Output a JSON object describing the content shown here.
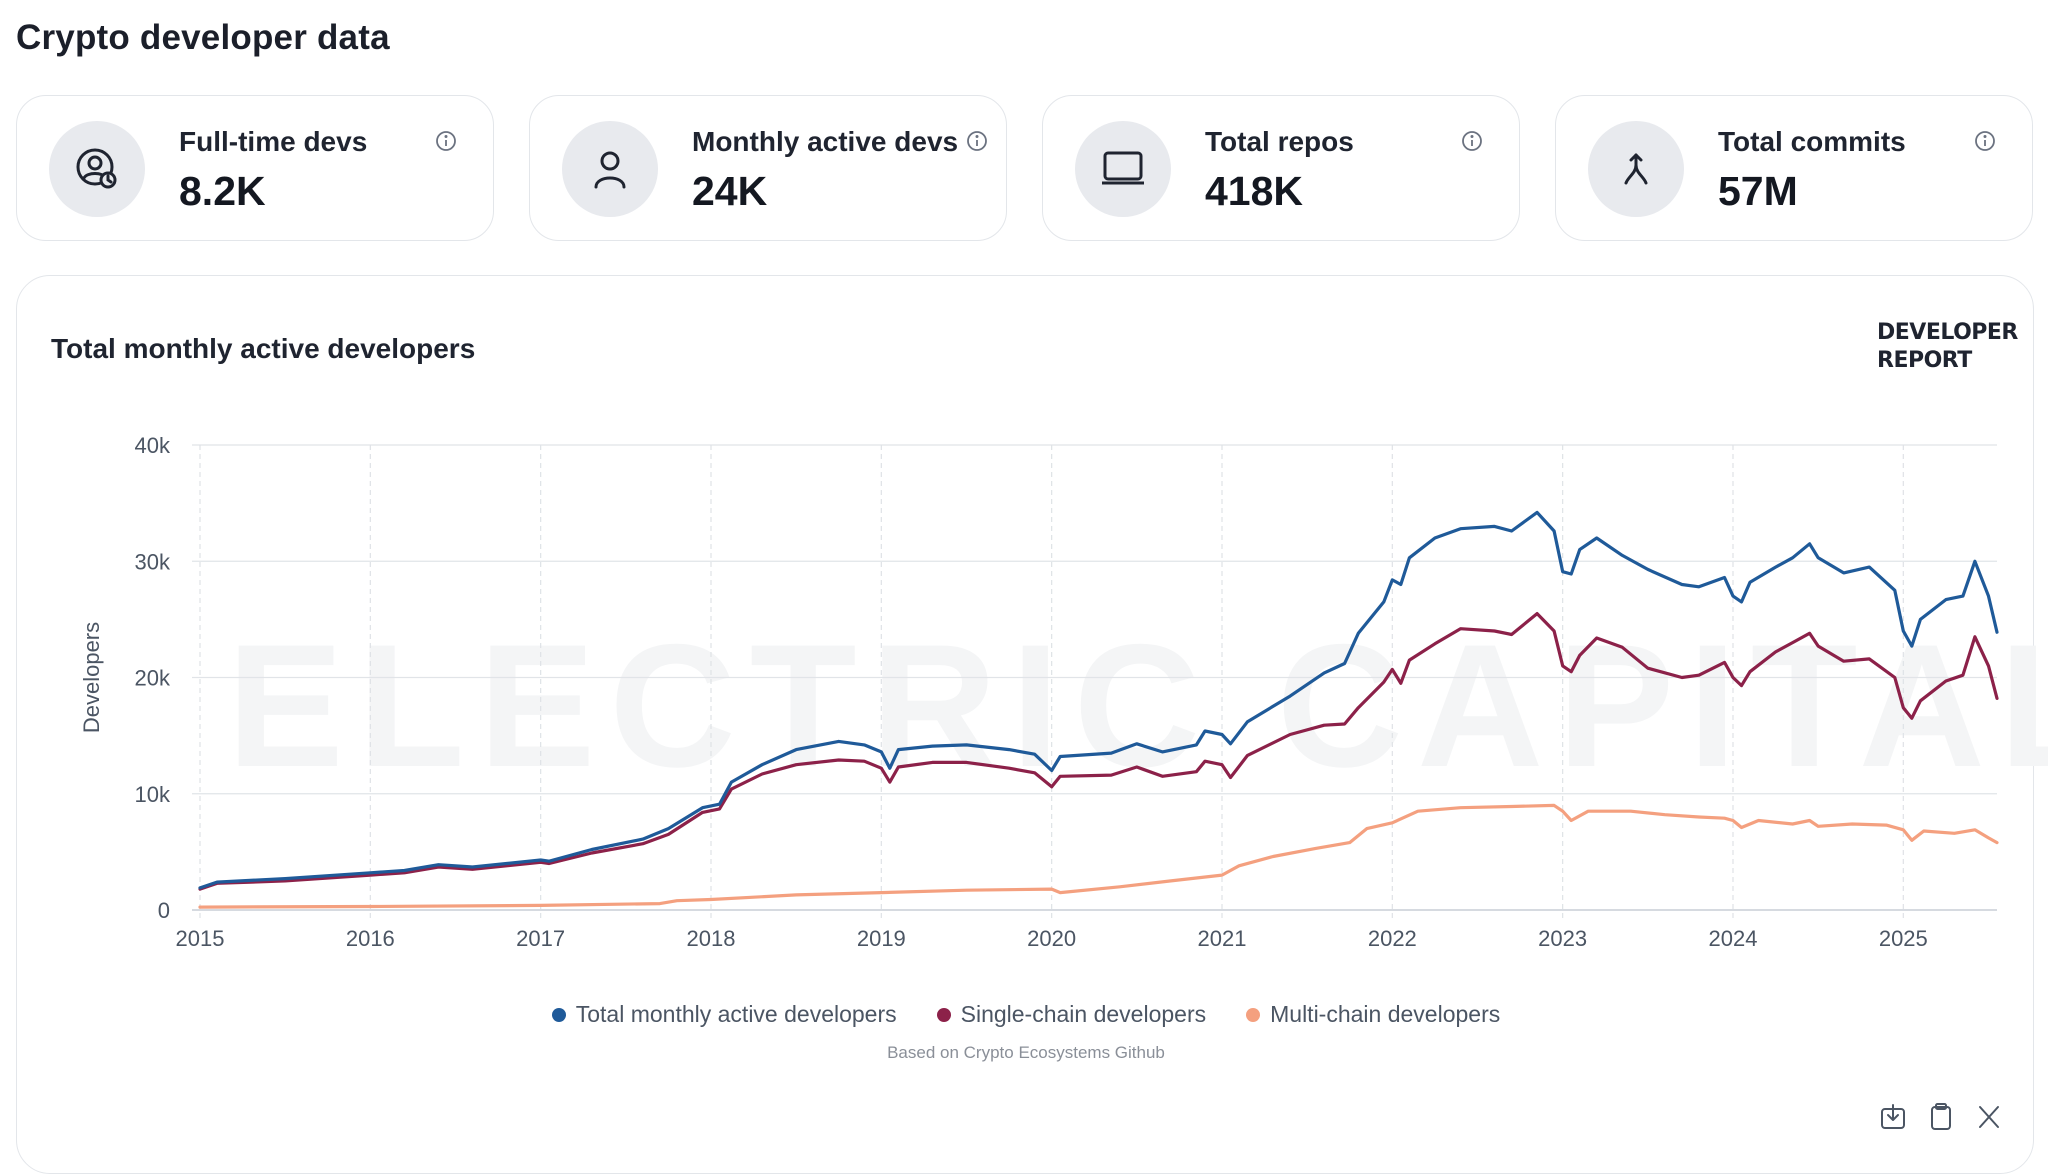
{
  "page": {
    "title": "Crypto developer data"
  },
  "stats": [
    {
      "label": "Full-time devs",
      "value": "8.2K",
      "icon": "user-clock-icon"
    },
    {
      "label": "Monthly active devs",
      "value": "24K",
      "icon": "user-icon"
    },
    {
      "label": "Total repos",
      "value": "418K",
      "icon": "laptop-icon"
    },
    {
      "label": "Total commits",
      "value": "57M",
      "icon": "merge-icon"
    }
  ],
  "chart": {
    "title": "Total monthly active developers",
    "badge": "DEVELOPER REPORT",
    "watermark": "ELECTRIC CAPITAL",
    "source_note": "Based on Crypto Ecosystems Github",
    "actions": [
      "download-icon",
      "clipboard-icon",
      "x-share-icon"
    ]
  },
  "chart_data": {
    "type": "line",
    "title": "Total monthly active developers",
    "xlabel": "",
    "ylabel": "Developers",
    "xlim": [
      2015,
      2025.55
    ],
    "ylim": [
      0,
      40000
    ],
    "x_ticks": [
      "2015",
      "2016",
      "2017",
      "2018",
      "2019",
      "2020",
      "2021",
      "2022",
      "2023",
      "2024",
      "2025"
    ],
    "y_ticks": [
      "0",
      "10k",
      "20k",
      "30k",
      "40k"
    ],
    "grid": true,
    "legend_position": "bottom",
    "series": [
      {
        "name": "Total monthly active developers",
        "color": "#1f5a99",
        "points": [
          [
            2015,
            1900
          ],
          [
            2015.1,
            2400
          ],
          [
            2015.5,
            2700
          ],
          [
            2016,
            3200
          ],
          [
            2016.2,
            3400
          ],
          [
            2016.4,
            3900
          ],
          [
            2016.6,
            3700
          ],
          [
            2016.8,
            4000
          ],
          [
            2017,
            4300
          ],
          [
            2017.05,
            4200
          ],
          [
            2017.3,
            5200
          ],
          [
            2017.6,
            6100
          ],
          [
            2017.75,
            7000
          ],
          [
            2017.95,
            8800
          ],
          [
            2018.05,
            9100
          ],
          [
            2018.12,
            11000
          ],
          [
            2018.3,
            12500
          ],
          [
            2018.5,
            13800
          ],
          [
            2018.75,
            14500
          ],
          [
            2018.9,
            14200
          ],
          [
            2019,
            13600
          ],
          [
            2019.05,
            12200
          ],
          [
            2019.1,
            13800
          ],
          [
            2019.3,
            14100
          ],
          [
            2019.5,
            14200
          ],
          [
            2019.75,
            13800
          ],
          [
            2019.9,
            13400
          ],
          [
            2020,
            12000
          ],
          [
            2020.05,
            13200
          ],
          [
            2020.35,
            13500
          ],
          [
            2020.5,
            14300
          ],
          [
            2020.65,
            13600
          ],
          [
            2020.85,
            14200
          ],
          [
            2020.9,
            15400
          ],
          [
            2021,
            15100
          ],
          [
            2021.05,
            14300
          ],
          [
            2021.15,
            16200
          ],
          [
            2021.4,
            18400
          ],
          [
            2021.6,
            20400
          ],
          [
            2021.72,
            21200
          ],
          [
            2021.8,
            23800
          ],
          [
            2021.95,
            26500
          ],
          [
            2022,
            28400
          ],
          [
            2022.05,
            28000
          ],
          [
            2022.1,
            30300
          ],
          [
            2022.25,
            32000
          ],
          [
            2022.4,
            32800
          ],
          [
            2022.6,
            33000
          ],
          [
            2022.7,
            32600
          ],
          [
            2022.85,
            34200
          ],
          [
            2022.95,
            32600
          ],
          [
            2023,
            29100
          ],
          [
            2023.05,
            28900
          ],
          [
            2023.1,
            31000
          ],
          [
            2023.2,
            32000
          ],
          [
            2023.35,
            30500
          ],
          [
            2023.5,
            29300
          ],
          [
            2023.7,
            28000
          ],
          [
            2023.8,
            27800
          ],
          [
            2023.95,
            28600
          ],
          [
            2024,
            27000
          ],
          [
            2024.05,
            26500
          ],
          [
            2024.1,
            28200
          ],
          [
            2024.25,
            29500
          ],
          [
            2024.35,
            30300
          ],
          [
            2024.45,
            31500
          ],
          [
            2024.5,
            30300
          ],
          [
            2024.65,
            29000
          ],
          [
            2024.8,
            29500
          ],
          [
            2024.95,
            27500
          ],
          [
            2025,
            24000
          ],
          [
            2025.05,
            22700
          ],
          [
            2025.1,
            25000
          ],
          [
            2025.25,
            26700
          ],
          [
            2025.35,
            27000
          ],
          [
            2025.42,
            30000
          ],
          [
            2025.5,
            27000
          ],
          [
            2025.55,
            23900
          ]
        ]
      },
      {
        "name": "Single-chain developers",
        "color": "#8c2149",
        "points": [
          [
            2015,
            1800
          ],
          [
            2015.1,
            2300
          ],
          [
            2015.5,
            2500
          ],
          [
            2016,
            3000
          ],
          [
            2016.2,
            3200
          ],
          [
            2016.4,
            3700
          ],
          [
            2016.6,
            3500
          ],
          [
            2016.8,
            3800
          ],
          [
            2017,
            4100
          ],
          [
            2017.05,
            4000
          ],
          [
            2017.3,
            4900
          ],
          [
            2017.6,
            5700
          ],
          [
            2017.75,
            6500
          ],
          [
            2017.95,
            8400
          ],
          [
            2018.05,
            8700
          ],
          [
            2018.12,
            10400
          ],
          [
            2018.3,
            11700
          ],
          [
            2018.5,
            12500
          ],
          [
            2018.75,
            12900
          ],
          [
            2018.9,
            12800
          ],
          [
            2019,
            12200
          ],
          [
            2019.05,
            11000
          ],
          [
            2019.1,
            12300
          ],
          [
            2019.3,
            12700
          ],
          [
            2019.5,
            12700
          ],
          [
            2019.75,
            12200
          ],
          [
            2019.9,
            11800
          ],
          [
            2020,
            10600
          ],
          [
            2020.05,
            11500
          ],
          [
            2020.35,
            11600
          ],
          [
            2020.5,
            12300
          ],
          [
            2020.65,
            11500
          ],
          [
            2020.85,
            11900
          ],
          [
            2020.9,
            12800
          ],
          [
            2021,
            12500
          ],
          [
            2021.05,
            11400
          ],
          [
            2021.15,
            13300
          ],
          [
            2021.4,
            15100
          ],
          [
            2021.6,
            15900
          ],
          [
            2021.72,
            16000
          ],
          [
            2021.8,
            17400
          ],
          [
            2021.95,
            19600
          ],
          [
            2022,
            20700
          ],
          [
            2022.05,
            19500
          ],
          [
            2022.1,
            21500
          ],
          [
            2022.25,
            22900
          ],
          [
            2022.4,
            24200
          ],
          [
            2022.6,
            24000
          ],
          [
            2022.7,
            23700
          ],
          [
            2022.85,
            25500
          ],
          [
            2022.95,
            24000
          ],
          [
            2023,
            21000
          ],
          [
            2023.05,
            20500
          ],
          [
            2023.1,
            21900
          ],
          [
            2023.2,
            23400
          ],
          [
            2023.35,
            22600
          ],
          [
            2023.5,
            20800
          ],
          [
            2023.7,
            20000
          ],
          [
            2023.8,
            20200
          ],
          [
            2023.95,
            21300
          ],
          [
            2024,
            20000
          ],
          [
            2024.05,
            19300
          ],
          [
            2024.1,
            20500
          ],
          [
            2024.25,
            22200
          ],
          [
            2024.35,
            23000
          ],
          [
            2024.45,
            23800
          ],
          [
            2024.5,
            22700
          ],
          [
            2024.65,
            21400
          ],
          [
            2024.8,
            21600
          ],
          [
            2024.95,
            20000
          ],
          [
            2025,
            17400
          ],
          [
            2025.05,
            16500
          ],
          [
            2025.1,
            18000
          ],
          [
            2025.25,
            19700
          ],
          [
            2025.35,
            20200
          ],
          [
            2025.42,
            23500
          ],
          [
            2025.5,
            21000
          ],
          [
            2025.55,
            18200
          ]
        ]
      },
      {
        "name": "Multi-chain developers",
        "color": "#f4a07f",
        "points": [
          [
            2015,
            250
          ],
          [
            2016,
            300
          ],
          [
            2017,
            400
          ],
          [
            2017.7,
            550
          ],
          [
            2017.8,
            800
          ],
          [
            2018,
            900
          ],
          [
            2018.5,
            1300
          ],
          [
            2019,
            1500
          ],
          [
            2019.5,
            1700
          ],
          [
            2020,
            1800
          ],
          [
            2020.05,
            1500
          ],
          [
            2020.4,
            2000
          ],
          [
            2020.7,
            2500
          ],
          [
            2021,
            3000
          ],
          [
            2021.1,
            3800
          ],
          [
            2021.3,
            4600
          ],
          [
            2021.55,
            5300
          ],
          [
            2021.75,
            5800
          ],
          [
            2021.85,
            7000
          ],
          [
            2022,
            7500
          ],
          [
            2022.15,
            8500
          ],
          [
            2022.4,
            8800
          ],
          [
            2022.7,
            8900
          ],
          [
            2022.95,
            9000
          ],
          [
            2023,
            8500
          ],
          [
            2023.05,
            7700
          ],
          [
            2023.15,
            8500
          ],
          [
            2023.4,
            8500
          ],
          [
            2023.6,
            8200
          ],
          [
            2023.8,
            8000
          ],
          [
            2023.95,
            7900
          ],
          [
            2024,
            7700
          ],
          [
            2024.05,
            7100
          ],
          [
            2024.15,
            7700
          ],
          [
            2024.35,
            7400
          ],
          [
            2024.45,
            7700
          ],
          [
            2024.5,
            7200
          ],
          [
            2024.7,
            7400
          ],
          [
            2024.9,
            7300
          ],
          [
            2025,
            6900
          ],
          [
            2025.05,
            6000
          ],
          [
            2025.12,
            6800
          ],
          [
            2025.3,
            6600
          ],
          [
            2025.42,
            6900
          ],
          [
            2025.5,
            6200
          ],
          [
            2025.55,
            5800
          ]
        ]
      }
    ]
  }
}
